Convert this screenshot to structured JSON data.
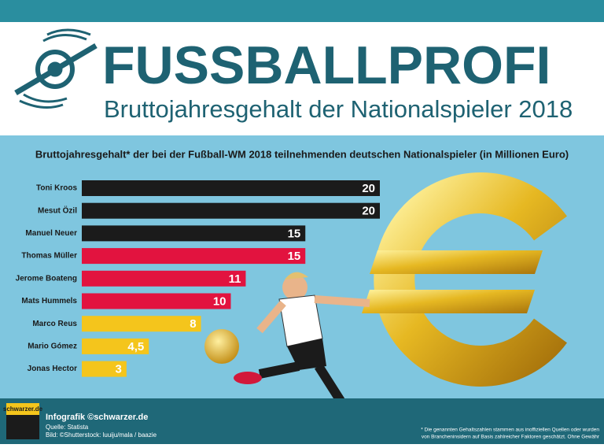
{
  "header": {
    "title": "FUSSBALLPROFI",
    "subtitle": "Bruttojahresgehalt der Nationalspieler 2018"
  },
  "chart_data": {
    "type": "bar",
    "orientation": "horizontal",
    "title": "Bruttojahresgehalt* der bei der Fußball-WM 2018 teilnehmenden deutschen Nationalspieler (in Millionen Euro)",
    "categories": [
      "Toni Kroos",
      "Mesut Özil",
      "Manuel Neuer",
      "Thomas Müller",
      "Jerome Boateng",
      "Mats Hummels",
      "Marco Reus",
      "Mario Gómez",
      "Jonas Hector"
    ],
    "values": [
      20,
      20,
      15,
      15,
      11,
      10,
      8,
      4.5,
      3
    ],
    "value_labels": [
      "20",
      "20",
      "15",
      "15",
      "11",
      "10",
      "8",
      "4,5",
      "3"
    ],
    "colors": [
      "#1b1b1b",
      "#1b1b1b",
      "#1b1b1b",
      "#e2133f",
      "#e2133f",
      "#e2133f",
      "#f4c51c",
      "#f4c51c",
      "#f4c51c"
    ]
  },
  "footer": {
    "logo": "schwarzer.de",
    "credit": "Infografik ©schwarzer.de",
    "source": "Quelle: Statista",
    "image": "Bild: ©Shutterstock: luuiju/mala / baazie",
    "note": [
      "* Die genannten Gehaltszahlen stammen aus inoffiziellen Quellen oder wurden",
      "von Brancheninsidern auf Basis zahlreicher Faktoren geschätzt. Ohne Gewähr"
    ]
  }
}
